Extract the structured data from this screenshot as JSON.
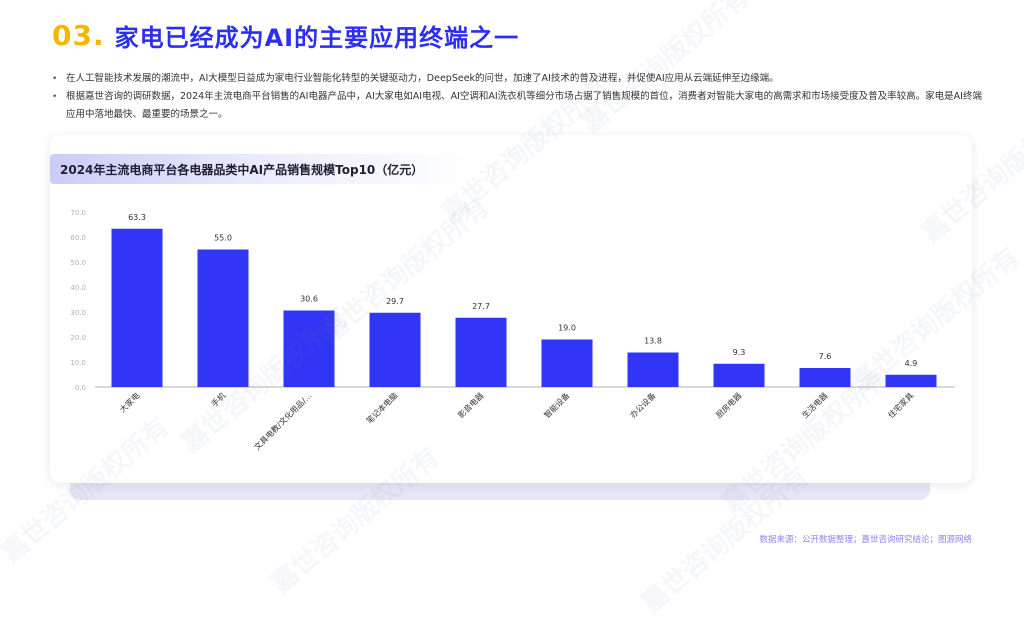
{
  "header": {
    "number": "03.",
    "title": "家电已经成为AI的主要应用终端之一"
  },
  "bullets": [
    "在人工智能技术发展的潮流中，AI大模型日益成为家电行业智能化转型的关键驱动力，DeepSeek的问世，加速了AI技术的普及进程，并促使AI应用从云端延伸至边缘端。",
    "根据嘉世咨询的调研数据，2024年主流电商平台销售的AI电器产品中，AI大家电如AI电视、AI空调和AI洗衣机等细分市场占据了销售规模的首位，消费者对智能大家电的高需求和市场接受度及普及率较高。家电是AI终端应用中落地最快、最重要的场景之一。"
  ],
  "bullet_marker": "•",
  "watermark": "嘉世咨询版权所有",
  "source": "数据来源：公开数据整理；嘉世咨询研究结论；图源网络",
  "colors": {
    "bar": "#3135f5",
    "accent_number": "#f7b500",
    "title": "#2c2ef0",
    "axis": "#b3b3b3",
    "source": "#8a84ee"
  },
  "chart_data": {
    "type": "bar",
    "title": "2024年主流电商平台各电器品类中AI产品销售规模Top10（亿元）",
    "categories": [
      "大家电",
      "手机",
      "文具电教/文化用品/...",
      "笔记本电脑",
      "影音电器",
      "智能设备",
      "办公设备",
      "厨房电器",
      "生活电器",
      "住宅家具"
    ],
    "values": [
      63.3,
      55.0,
      30.6,
      29.7,
      27.7,
      19.0,
      13.8,
      9.3,
      7.6,
      4.9
    ],
    "value_labels": [
      "63.3",
      "55.0",
      "30.6",
      "29.7",
      "27.7",
      "19.0",
      "13.8",
      "9.3",
      "7.6",
      "4.9"
    ],
    "yticks": [
      "0.0",
      "10.0",
      "20.0",
      "30.0",
      "40.0",
      "50.0",
      "60.0",
      "70.0"
    ],
    "ylim": [
      0,
      70
    ],
    "xlabel": "",
    "ylabel": "",
    "grid": false
  }
}
